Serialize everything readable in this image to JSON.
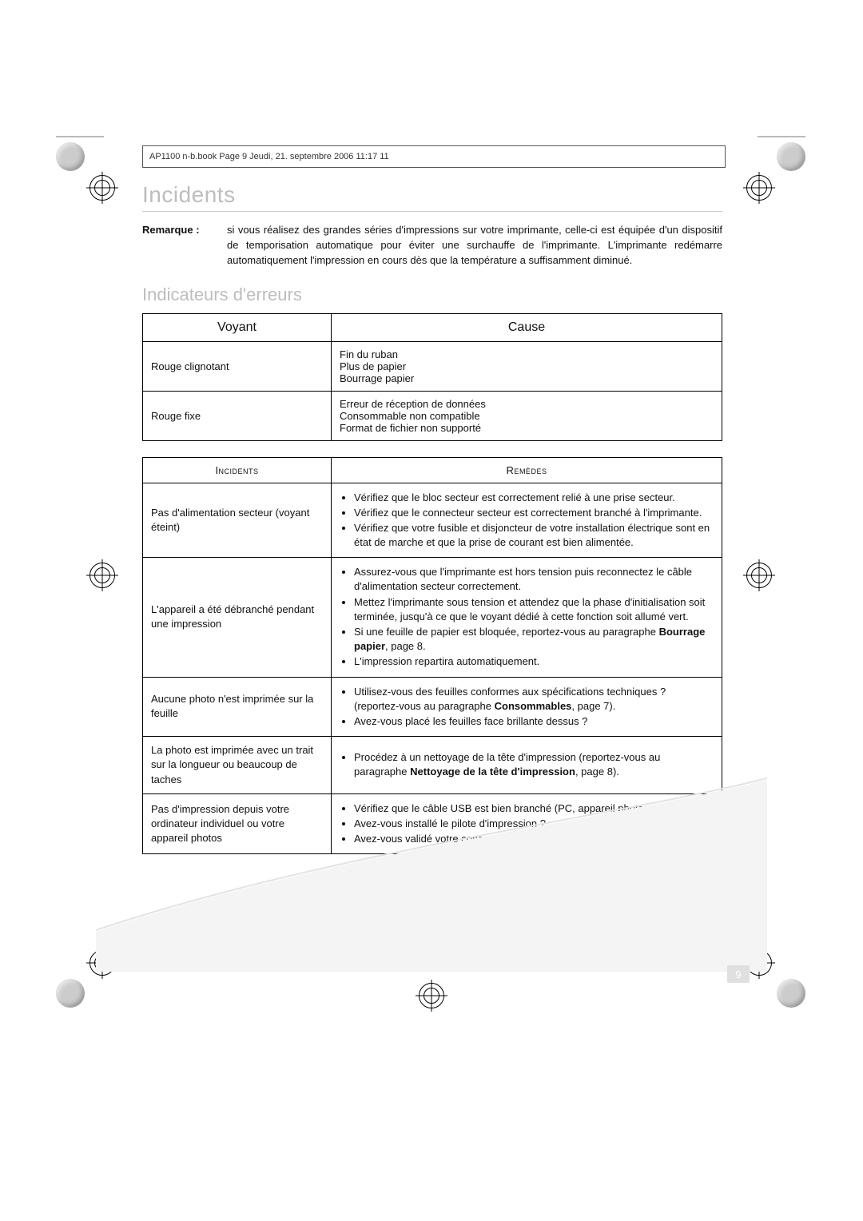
{
  "frame_header": "AP1100 n-b.book  Page 9  Jeudi, 21. septembre 2006  11:17 11",
  "section_title": "Incidents",
  "remark_label": "Remarque :",
  "remark_text": "si vous réalisez des grandes séries d'impressions sur votre imprimante, celle-ci est équipée d'un dispositif de temporisation automatique pour éviter une surchauffe de l'imprimante. L'imprimante redémarre automatiquement l'impression en cours dès que la température a suffisamment diminué.",
  "sub_title": "Indicateurs d'erreurs",
  "table1": {
    "head_left": "Voyant",
    "head_right": "Cause",
    "rows": [
      {
        "voyant": "Rouge clignotant",
        "cause_lines": [
          "Fin du ruban",
          "Plus de papier",
          "Bourrage papier"
        ]
      },
      {
        "voyant": "Rouge fixe",
        "cause_lines": [
          "Erreur de réception de données",
          "Consommable non compatible",
          "Format de fichier non supporté"
        ]
      }
    ]
  },
  "table2": {
    "head_left": "Incidents",
    "head_right": "Remèdes",
    "rows": [
      {
        "incident": "Pas d'alimentation secteur (voyant éteint)",
        "remedies": [
          "Vérifiez que le bloc secteur est correctement relié à une prise secteur.",
          "Vérifiez que le connecteur secteur est correctement branché à l'imprimante.",
          "Vérifiez que votre fusible et disjoncteur de votre installation électrique sont en état de marche et que la prise de courant est bien alimentée."
        ]
      },
      {
        "incident": "L'appareil a été débranché pendant une impression",
        "remedies": [
          "Assurez-vous que l'imprimante est hors tension puis reconnectez le câble d'alimentation secteur correctement.",
          "Mettez l'imprimante sous tension et attendez que la phase d'initialisation soit terminée, jusqu'à ce que le voyant dédié à cette fonction soit allumé vert.",
          "Si une feuille de papier est bloquée, reportez-vous au paragraphe <span class=\"bold\">Bourrage papier</span>, page 8.",
          "L'impression repartira automatiquement."
        ]
      },
      {
        "incident": "Aucune photo n'est imprimée sur la feuille",
        "remedies": [
          "Utilisez-vous des feuilles conformes aux spécifications techniques ? (reportez-vous au paragraphe <span class=\"bold\">Consommables</span>, page 7).",
          "Avez-vous placé les feuilles face brillante dessus ?"
        ]
      },
      {
        "incident": "La photo est imprimée avec un trait sur la longueur ou beaucoup de taches",
        "remedies": [
          "Procédez à un nettoyage de la tête d'impression  (reportez-vous au paragraphe <span class=\"bold\">Nettoyage de la tête d'impression</span>, page 8)."
        ]
      },
      {
        "incident": "Pas d'impression depuis votre ordinateur individuel ou votre appareil photos",
        "remedies": [
          "Vérifiez que le câble USB est bien branché (PC, appareil photos, ...).",
          "Avez-vous installé le pilote d'impression ?",
          "Avez-vous validé votre consommable avec la carte à puce fournie ?"
        ]
      }
    ]
  },
  "page_number": "9",
  "colors": {
    "heading_grey": "#bdbdbd",
    "line_grey": "#c9c9c9",
    "text": "#111111",
    "page_num_bg": "#e0e0e0"
  }
}
